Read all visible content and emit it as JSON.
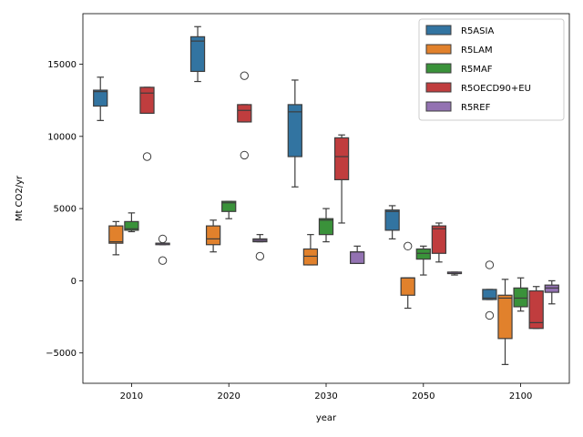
{
  "chart_data": {
    "type": "box",
    "xlabel": "year",
    "ylabel": "Mt CO2/yr",
    "categories": [
      "2010",
      "2020",
      "2030",
      "2050",
      "2100"
    ],
    "ylim": [
      -7100,
      18500
    ],
    "yticks": [
      -5000,
      0,
      5000,
      10000,
      15000
    ],
    "ytick_labels": [
      "−5000",
      "0",
      "5000",
      "10000",
      "15000"
    ],
    "grid": false,
    "legend_position": "top-right",
    "series": [
      {
        "name": "R5ASIA",
        "color": "#3274a1",
        "boxes": [
          {
            "whislo": 11100,
            "q1": 12100,
            "med": 13100,
            "q3": 13200,
            "whishi": 14100,
            "fliers": []
          },
          {
            "whislo": 13800,
            "q1": 14500,
            "med": 16600,
            "q3": 16900,
            "whishi": 17600,
            "fliers": []
          },
          {
            "whislo": 6500,
            "q1": 8600,
            "med": 11700,
            "q3": 12200,
            "whishi": 13900,
            "fliers": []
          },
          {
            "whislo": 2900,
            "q1": 3500,
            "med": 4800,
            "q3": 4900,
            "whishi": 5200,
            "fliers": []
          },
          {
            "whislo": -1300,
            "q1": -1300,
            "med": -1200,
            "q3": -600,
            "whishi": -600,
            "fliers": [
              1100,
              -2400
            ]
          }
        ]
      },
      {
        "name": "R5LAM",
        "color": "#e1812c",
        "boxes": [
          {
            "whislo": 1800,
            "q1": 2600,
            "med": 2700,
            "q3": 3800,
            "whishi": 4100,
            "fliers": []
          },
          {
            "whislo": 2000,
            "q1": 2500,
            "med": 2900,
            "q3": 3800,
            "whishi": 4200,
            "fliers": []
          },
          {
            "whislo": 1100,
            "q1": 1100,
            "med": 1700,
            "q3": 2200,
            "whishi": 3200,
            "fliers": []
          },
          {
            "whislo": -1900,
            "q1": -1000,
            "med": 200,
            "q3": 200,
            "whishi": 200,
            "fliers": [
              2400
            ]
          },
          {
            "whislo": -5800,
            "q1": -4000,
            "med": -1200,
            "q3": -1000,
            "whishi": 100,
            "fliers": []
          }
        ]
      },
      {
        "name": "R5MAF",
        "color": "#3a923a",
        "boxes": [
          {
            "whislo": 3400,
            "q1": 3500,
            "med": 3600,
            "q3": 4100,
            "whishi": 4700,
            "fliers": []
          },
          {
            "whislo": 4300,
            "q1": 4800,
            "med": 5400,
            "q3": 5500,
            "whishi": 5500,
            "fliers": []
          },
          {
            "whislo": 2700,
            "q1": 3200,
            "med": 4200,
            "q3": 4300,
            "whishi": 5000,
            "fliers": []
          },
          {
            "whislo": 400,
            "q1": 1500,
            "med": 1900,
            "q3": 2200,
            "whishi": 2400,
            "fliers": []
          },
          {
            "whislo": -2100,
            "q1": -1800,
            "med": -1200,
            "q3": -500,
            "whishi": 200,
            "fliers": []
          }
        ]
      },
      {
        "name": "R5OECD90+EU",
        "color": "#c03d3e",
        "boxes": [
          {
            "whislo": 11600,
            "q1": 11600,
            "med": 13000,
            "q3": 13400,
            "whishi": 13400,
            "fliers": [
              8600
            ]
          },
          {
            "whislo": 11000,
            "q1": 11000,
            "med": 11800,
            "q3": 12200,
            "whishi": 12200,
            "fliers": [
              14200,
              8700
            ]
          },
          {
            "whislo": 4000,
            "q1": 7000,
            "med": 8600,
            "q3": 9900,
            "whishi": 10100,
            "fliers": []
          },
          {
            "whislo": 1300,
            "q1": 1900,
            "med": 3600,
            "q3": 3800,
            "whishi": 4000,
            "fliers": []
          },
          {
            "whislo": -3300,
            "q1": -3300,
            "med": -2900,
            "q3": -700,
            "whishi": -400,
            "fliers": []
          }
        ]
      },
      {
        "name": "R5REF",
        "color": "#9372b2",
        "boxes": [
          {
            "whislo": 2500,
            "q1": 2500,
            "med": 2600,
            "q3": 2600,
            "whishi": 2600,
            "fliers": [
              2900,
              1400
            ]
          },
          {
            "whislo": 2700,
            "q1": 2700,
            "med": 2800,
            "q3": 2900,
            "whishi": 3200,
            "fliers": [
              1700
            ]
          },
          {
            "whislo": 1200,
            "q1": 1200,
            "med": 2000,
            "q3": 2000,
            "whishi": 2400,
            "fliers": []
          },
          {
            "whislo": 400,
            "q1": 500,
            "med": 500,
            "q3": 600,
            "whishi": 600,
            "fliers": []
          },
          {
            "whislo": -1600,
            "q1": -800,
            "med": -500,
            "q3": -300,
            "whishi": 0,
            "fliers": []
          }
        ]
      }
    ]
  }
}
